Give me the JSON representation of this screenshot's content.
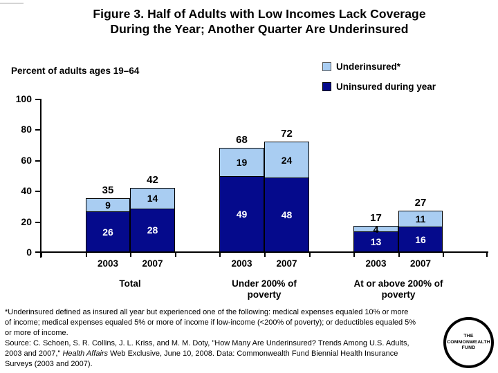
{
  "slide": {
    "title_lines": [
      "Figure 3. Half of Adults with Low Incomes Lack Coverage",
      "During the Year; Another Quarter Are Underinsured"
    ]
  },
  "chart_data": {
    "type": "bar",
    "stacked": true,
    "title": "Figure 3. Half of Adults with Low Incomes Lack Coverage During the Year; Another Quarter Are Underinsured",
    "ylabel": "Percent of adults ages 19–64",
    "ylim": [
      0,
      100
    ],
    "yticks": [
      0,
      20,
      40,
      60,
      80,
      100
    ],
    "grid": false,
    "legend_position": "top-right",
    "bar_outline_color": "#000000",
    "group_labels": [
      "Total",
      "Under 200% of poverty",
      "At or above 200% of poverty"
    ],
    "categories": [
      "2003",
      "2007",
      "2003",
      "2007",
      "2003",
      "2007"
    ],
    "series": [
      {
        "name": "Uninsured during year",
        "color": "#050a8c",
        "label_color": "#ffffff",
        "values": [
          26,
          28,
          49,
          48,
          13,
          16
        ]
      },
      {
        "name": "Underinsured*",
        "color": "#a9cdf2",
        "label_color": "#000000",
        "values": [
          9,
          14,
          19,
          24,
          4,
          11
        ]
      }
    ],
    "totals": [
      35,
      42,
      68,
      72,
      17,
      27
    ]
  },
  "footnote": {
    "definition_lines": [
      "*Underinsured defined as insured all year but experienced one of the following: medical expenses equaled 10% or more",
      "of income; medical expenses equaled 5% or more of income if low-income (<200% of poverty); or deductibles equaled 5%",
      "or more of income."
    ],
    "source_line1": "Source: C. Schoen, S. R. Collins, J. L. Kriss, and M. M. Doty, \"How Many Are Underinsured? Trends Among U.S. Adults,",
    "source_line2_pre": "2003 and 2007,\" ",
    "source_line2_italic": "Health Affairs",
    "source_line2_post": " Web Exclusive, June 10, 2008. Data: Commonwealth Fund Biennial Health Insurance",
    "source_line3": "Surveys (2003 and 2007)."
  },
  "logo": {
    "lines": [
      "THE",
      "COMMONWEALTH",
      "FUND"
    ]
  }
}
